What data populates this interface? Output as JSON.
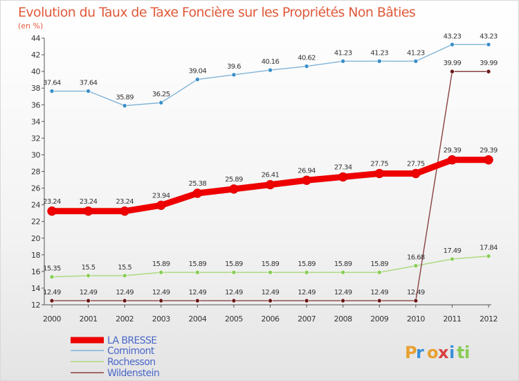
{
  "chart_data": {
    "type": "line",
    "title": "Evolution du Taux de Taxe Foncière sur les Propriétés Non Bâties",
    "subtitle": "(en %)",
    "x": [
      "2000",
      "2001",
      "2002",
      "2003",
      "2004",
      "2005",
      "2006",
      "2007",
      "2008",
      "2009",
      "2010",
      "2011",
      "2012"
    ],
    "ylim": [
      12,
      44
    ],
    "yticks": [
      12,
      14,
      16,
      18,
      20,
      22,
      24,
      26,
      28,
      30,
      32,
      34,
      36,
      38,
      40,
      42,
      44
    ],
    "grid": false,
    "legend_position": "bottom-left",
    "series": [
      {
        "name": "Cornimont",
        "color": "#7fb3d8",
        "marker_color": "#3a8fc8",
        "values": [
          37.64,
          37.64,
          35.89,
          36.25,
          39.04,
          39.6,
          40.16,
          40.62,
          41.23,
          41.23,
          41.23,
          43.23,
          43.23
        ],
        "labels": [
          "37.64",
          "37.64",
          "35.89",
          "36.25",
          "39.04",
          "39.6",
          "40.16",
          "40.62",
          "41.23",
          "41.23",
          "41.23",
          "43.23",
          "43.23"
        ]
      },
      {
        "name": "LA BRESSE",
        "color": "#ee0000",
        "marker_color": "#ee0000",
        "values": [
          23.24,
          23.24,
          23.24,
          23.94,
          25.38,
          25.89,
          26.41,
          26.94,
          27.34,
          27.75,
          27.75,
          29.39,
          29.39
        ],
        "labels": [
          "23.24",
          "23.24",
          "23.24",
          "23.94",
          "25.38",
          "25.89",
          "26.41",
          "26.94",
          "27.34",
          "27.75",
          "27.75",
          "29.39",
          "29.39"
        ]
      },
      {
        "name": "Rochesson",
        "color": "#a8d878",
        "marker_color": "#88cc55",
        "values": [
          15.35,
          15.5,
          15.5,
          15.89,
          15.89,
          15.89,
          15.89,
          15.89,
          15.89,
          15.89,
          16.68,
          17.49,
          17.84
        ],
        "labels": [
          "15.35",
          "15.5",
          "15.5",
          "15.89",
          "15.89",
          "15.89",
          "15.89",
          "15.89",
          "15.89",
          "15.89",
          "16.68",
          "17.49",
          "17.84"
        ]
      },
      {
        "name": "Wildenstein",
        "color": "#8a4040",
        "marker_color": "#6a1818",
        "values": [
          12.49,
          12.49,
          12.49,
          12.49,
          12.49,
          12.49,
          12.49,
          12.49,
          12.49,
          12.49,
          12.49,
          39.99,
          39.99
        ],
        "labels": [
          "12.49",
          "12.49",
          "12.49",
          "12.49",
          "12.49",
          "12.49",
          "12.49",
          "12.49",
          "12.49",
          "12.49",
          "12.49",
          "39.99",
          "39.99"
        ]
      }
    ],
    "legend": [
      "LA BRESSE",
      "Cornimont",
      "Rochesson",
      "Wildenstein"
    ]
  },
  "logo": {
    "letters": [
      "P",
      "r",
      "o",
      "x",
      "i",
      "t",
      "i"
    ],
    "colors": [
      "#e8a030",
      "#3a8fd8",
      "#e8a030",
      "#d84040",
      "#3a8fd8",
      "#88cc55",
      "#88cc55"
    ]
  }
}
